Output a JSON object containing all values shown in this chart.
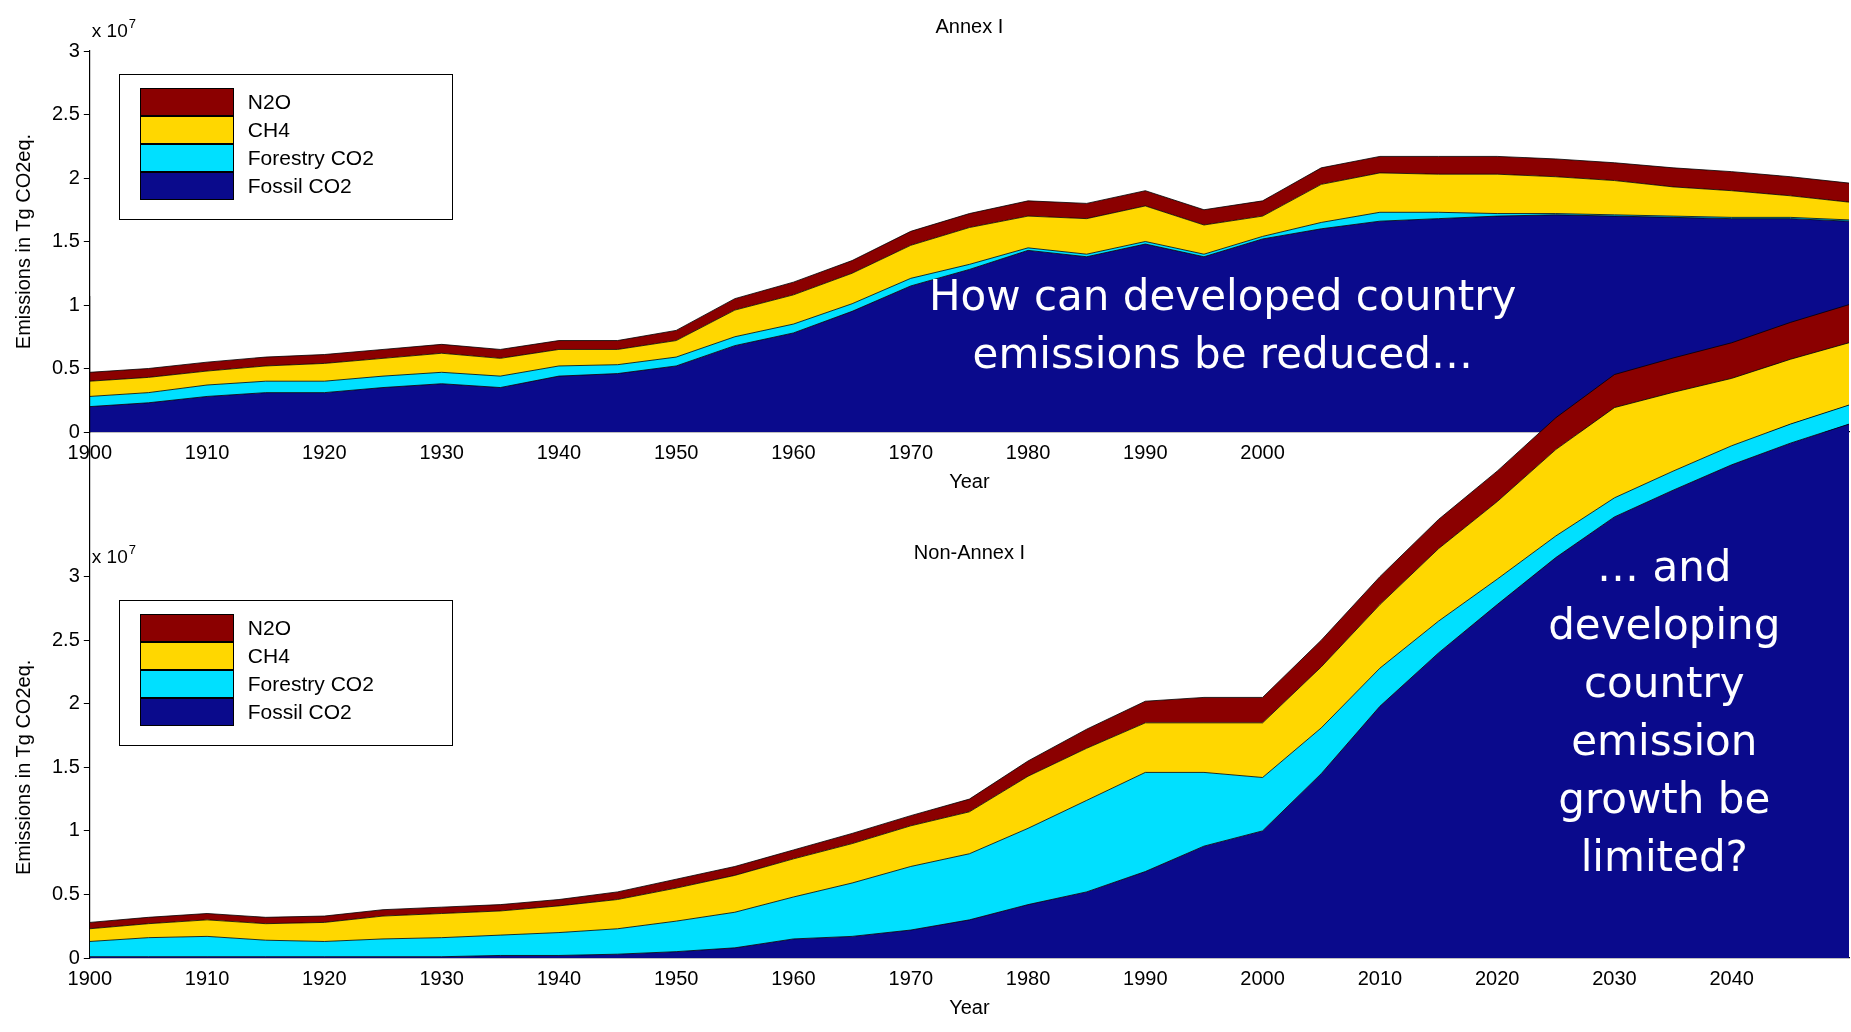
{
  "chart_data": [
    {
      "type": "area",
      "stacked": true,
      "title": "Annex I",
      "xlabel": "Year",
      "ylabel": "Emissions in Tg CO2eq.",
      "legend": "top left",
      "annotations": [
        "x 10$^{7}$",
        "How can developed country emissions be reduced…"
      ],
      "x": [
        1900,
        1905,
        1910,
        1915,
        1920,
        1925,
        1930,
        1935,
        1940,
        1945,
        1950,
        1955,
        1960,
        1965,
        1970,
        1975,
        1980,
        1985,
        1990,
        1995,
        2000,
        2005,
        2010,
        2015,
        2020,
        2025,
        2030,
        2035,
        2040,
        2045,
        2050
      ],
      "xlim": [
        1900,
        2050
      ],
      "xticks": [
        1900,
        1910,
        1920,
        1930,
        1940,
        1950,
        1960,
        1970,
        1980,
        1990,
        2000
      ],
      "ylim": [
        0,
        3
      ],
      "yticks": [
        0,
        0.5,
        1,
        1.5,
        2,
        2.5,
        3
      ],
      "series": [
        {
          "name": "Fossil CO2",
          "color": "#0a0a8c",
          "values": [
            0.2,
            0.23,
            0.28,
            0.31,
            0.31,
            0.35,
            0.38,
            0.35,
            0.44,
            0.46,
            0.52,
            0.68,
            0.78,
            0.95,
            1.15,
            1.28,
            1.43,
            1.38,
            1.48,
            1.38,
            1.52,
            1.6,
            1.66,
            1.68,
            1.7,
            1.71,
            1.7,
            1.69,
            1.68,
            1.68,
            1.66
          ]
        },
        {
          "name": "Forestry CO2",
          "color": "#00e0ff",
          "values": [
            0.08,
            0.08,
            0.09,
            0.09,
            0.09,
            0.09,
            0.09,
            0.09,
            0.08,
            0.07,
            0.07,
            0.07,
            0.07,
            0.06,
            0.06,
            0.04,
            0.02,
            0.02,
            0.02,
            0.02,
            0.02,
            0.05,
            0.07,
            0.05,
            0.02,
            0.01,
            0.01,
            0.01,
            0.01,
            0.01,
            0.01
          ]
        },
        {
          "name": "CH4",
          "color": "#ffd700",
          "values": [
            0.12,
            0.12,
            0.11,
            0.12,
            0.14,
            0.14,
            0.15,
            0.14,
            0.13,
            0.12,
            0.13,
            0.21,
            0.23,
            0.24,
            0.26,
            0.29,
            0.25,
            0.28,
            0.28,
            0.23,
            0.16,
            0.3,
            0.31,
            0.3,
            0.31,
            0.29,
            0.27,
            0.23,
            0.21,
            0.17,
            0.14
          ]
        },
        {
          "name": "N2O",
          "color": "#8b0000",
          "values": [
            0.07,
            0.07,
            0.07,
            0.07,
            0.07,
            0.07,
            0.07,
            0.07,
            0.07,
            0.07,
            0.08,
            0.09,
            0.1,
            0.1,
            0.11,
            0.11,
            0.12,
            0.12,
            0.12,
            0.12,
            0.12,
            0.13,
            0.13,
            0.14,
            0.14,
            0.14,
            0.14,
            0.15,
            0.15,
            0.15,
            0.15
          ]
        }
      ]
    },
    {
      "type": "area",
      "stacked": true,
      "title": "Non-Annex I",
      "xlabel": "Year",
      "ylabel": "Emissions in Tg CO2eq.",
      "legend": "left",
      "annotations": [
        "x 10$^{7}$",
        "… and developing country emission growth be limited?"
      ],
      "x": [
        1900,
        1905,
        1910,
        1915,
        1920,
        1925,
        1930,
        1935,
        1940,
        1945,
        1950,
        1955,
        1960,
        1965,
        1970,
        1975,
        1980,
        1985,
        1990,
        1995,
        2000,
        2005,
        2010,
        2015,
        2020,
        2025,
        2030,
        2035,
        2040,
        2045,
        2050
      ],
      "xlim": [
        1900,
        2050
      ],
      "xticks": [
        1900,
        1910,
        1920,
        1930,
        1940,
        1950,
        1960,
        1970,
        1980,
        1990,
        2000,
        2010,
        2020,
        2030,
        2040
      ],
      "ylim": [
        0,
        5.2
      ],
      "yticks": [
        0,
        0.5,
        1,
        1.5,
        2,
        2.5,
        3
      ],
      "series": [
        {
          "name": "Fossil CO2",
          "color": "#0a0a8c",
          "values": [
            0.01,
            0.01,
            0.01,
            0.01,
            0.01,
            0.01,
            0.01,
            0.02,
            0.02,
            0.03,
            0.05,
            0.08,
            0.15,
            0.17,
            0.22,
            0.3,
            0.42,
            0.52,
            0.68,
            0.88,
            1.0,
            1.45,
            1.98,
            2.4,
            2.78,
            3.15,
            3.47,
            3.68,
            3.88,
            4.05,
            4.2
          ]
        },
        {
          "name": "Forestry CO2",
          "color": "#00e0ff",
          "values": [
            0.12,
            0.15,
            0.16,
            0.13,
            0.12,
            0.14,
            0.15,
            0.16,
            0.18,
            0.2,
            0.24,
            0.28,
            0.33,
            0.42,
            0.5,
            0.52,
            0.6,
            0.72,
            0.78,
            0.58,
            0.42,
            0.36,
            0.3,
            0.25,
            0.2,
            0.17,
            0.15,
            0.15,
            0.15,
            0.15,
            0.15
          ]
        },
        {
          "name": "CH4",
          "color": "#ffd700",
          "values": [
            0.1,
            0.11,
            0.13,
            0.13,
            0.15,
            0.18,
            0.19,
            0.19,
            0.21,
            0.23,
            0.26,
            0.29,
            0.3,
            0.31,
            0.32,
            0.33,
            0.41,
            0.41,
            0.39,
            0.39,
            0.43,
            0.48,
            0.5,
            0.57,
            0.61,
            0.68,
            0.71,
            0.62,
            0.53,
            0.51,
            0.49
          ]
        },
        {
          "name": "N2O",
          "color": "#8b0000",
          "values": [
            0.05,
            0.05,
            0.05,
            0.05,
            0.05,
            0.05,
            0.05,
            0.05,
            0.05,
            0.06,
            0.07,
            0.07,
            0.07,
            0.08,
            0.08,
            0.1,
            0.12,
            0.15,
            0.17,
            0.2,
            0.2,
            0.21,
            0.22,
            0.23,
            0.24,
            0.25,
            0.26,
            0.27,
            0.28,
            0.29,
            0.3
          ]
        }
      ]
    }
  ]
}
